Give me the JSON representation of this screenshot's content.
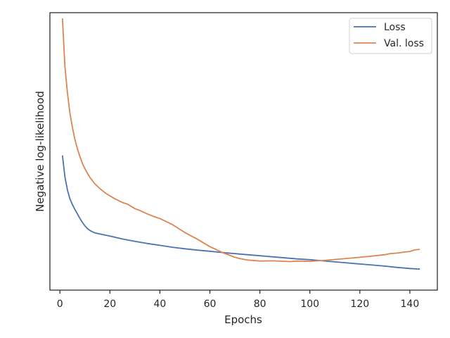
{
  "chart_data": {
    "type": "line",
    "title": "",
    "xlabel": "Epochs",
    "ylabel": "Negative log-likelihood",
    "xlim": [
      -4,
      151
    ],
    "ylim": [
      0,
      1
    ],
    "y_tick_labels_shown": false,
    "grid": false,
    "legend_position": "top-right",
    "x_ticks": [
      0,
      20,
      40,
      60,
      80,
      100,
      120,
      140
    ],
    "series": [
      {
        "name": "Loss",
        "color": "#4c72b0",
        "x": [
          1,
          2,
          3,
          4,
          5,
          6,
          7,
          8,
          9,
          10,
          11,
          12,
          13,
          14,
          16,
          18,
          20,
          25,
          30,
          35,
          40,
          45,
          50,
          55,
          60,
          65,
          70,
          75,
          80,
          85,
          90,
          95,
          100,
          105,
          110,
          115,
          120,
          125,
          130,
          135,
          140,
          144
        ],
        "values": [
          0.485,
          0.405,
          0.355,
          0.322,
          0.3,
          0.282,
          0.265,
          0.248,
          0.233,
          0.22,
          0.21,
          0.203,
          0.198,
          0.194,
          0.19,
          0.186,
          0.182,
          0.171,
          0.162,
          0.154,
          0.147,
          0.14,
          0.134,
          0.129,
          0.125,
          0.12,
          0.116,
          0.112,
          0.108,
          0.104,
          0.1,
          0.096,
          0.093,
          0.089,
          0.085,
          0.081,
          0.077,
          0.073,
          0.069,
          0.064,
          0.06,
          0.058
        ]
      },
      {
        "name": "Val. loss",
        "color": "#dd8452",
        "x": [
          1,
          2,
          3,
          4,
          5,
          6,
          7,
          8,
          9,
          10,
          11,
          12,
          13,
          14,
          16,
          18,
          20,
          22,
          25,
          27,
          30,
          32,
          35,
          38,
          40,
          45,
          50,
          55,
          60,
          65,
          70,
          72,
          75,
          80,
          85,
          90,
          92,
          95,
          100,
          105,
          110,
          115,
          120,
          125,
          130,
          132,
          135,
          138,
          140,
          142,
          144
        ],
        "values": [
          1.0,
          0.82,
          0.72,
          0.645,
          0.59,
          0.545,
          0.51,
          0.48,
          0.455,
          0.435,
          0.418,
          0.402,
          0.39,
          0.378,
          0.36,
          0.345,
          0.333,
          0.322,
          0.308,
          0.302,
          0.285,
          0.278,
          0.265,
          0.254,
          0.248,
          0.225,
          0.195,
          0.17,
          0.142,
          0.12,
          0.102,
          0.097,
          0.092,
          0.088,
          0.089,
          0.087,
          0.086,
          0.088,
          0.087,
          0.09,
          0.094,
          0.098,
          0.102,
          0.107,
          0.112,
          0.116,
          0.118,
          0.122,
          0.124,
          0.13,
          0.132
        ]
      }
    ]
  }
}
